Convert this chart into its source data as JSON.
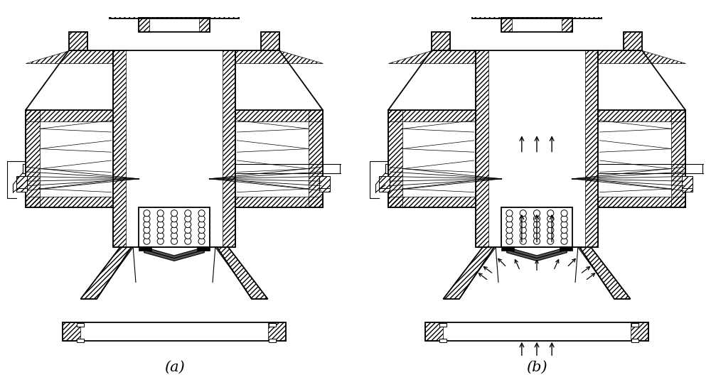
{
  "fig_width": 10.0,
  "fig_height": 5.45,
  "dpi": 100,
  "bg_color": "#ffffff",
  "black": "#000000",
  "white": "#ffffff",
  "label_a": "(a)",
  "label_b": "(b)",
  "label_fontsize": 15
}
